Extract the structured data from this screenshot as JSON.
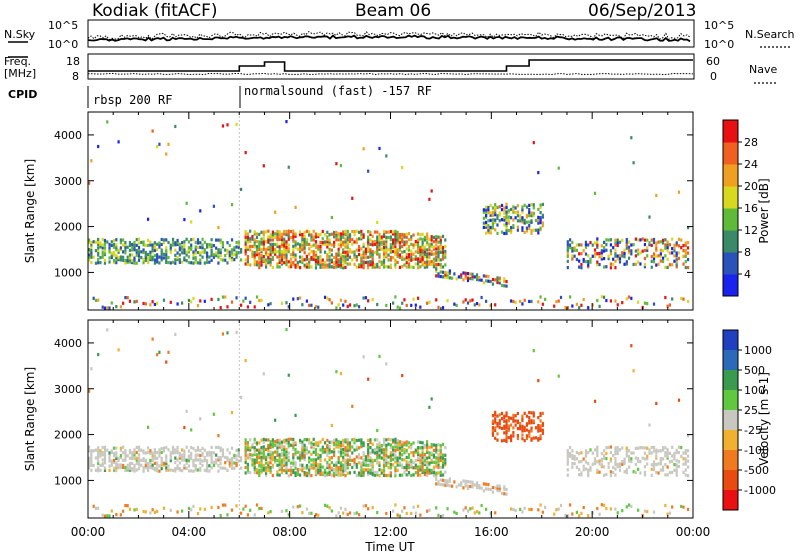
{
  "header": {
    "station": "Kodiak (fitACF)",
    "beam": "Beam 06",
    "date": "06/Sep/2013"
  },
  "status_rows": {
    "nsky_label": "N.Sky",
    "nsky_ticks": [
      "10^5",
      "10^0"
    ],
    "nsearch_label": "N.Search",
    "nsearch_ticks": [
      "10^5",
      "10^0"
    ],
    "freq_label_1": "Freq.",
    "freq_label_2": "[MHz]",
    "freq_ticks": [
      "18",
      "8"
    ],
    "nave_label": "Nave",
    "nave_ticks": [
      "60",
      "0"
    ],
    "cpid_label": "CPID",
    "cpid_segments": [
      {
        "label": "rbsp 200 RF",
        "start_hour": 0
      },
      {
        "label": "normalsound (fast) -157 RF",
        "start_hour": 6.0
      }
    ]
  },
  "chart_data": [
    {
      "type": "heatmap",
      "panel": "power",
      "xlabel": "",
      "ylabel": "Slant Range [km]",
      "xlim": [
        0,
        24
      ],
      "ylim": [
        180,
        4500
      ],
      "yticks": [
        "1000",
        "2000",
        "3000",
        "4000"
      ],
      "colorbar": {
        "label": "Power [dB]",
        "ticks": [
          "4",
          "8",
          "12",
          "16",
          "20",
          "24",
          "28"
        ],
        "colors": [
          "#1a22ee",
          "#2a52b8",
          "#3a8a6a",
          "#5fba3a",
          "#d8d820",
          "#f0a020",
          "#f06020",
          "#e81010"
        ]
      },
      "regions": [
        {
          "x": [
            0,
            6
          ],
          "y": [
            1200,
            1700
          ],
          "level": "green-yellow"
        },
        {
          "x": [
            6.2,
            14.2
          ],
          "y": [
            1100,
            1900
          ],
          "level": "green-orange"
        },
        {
          "x": [
            13.7,
            16.6
          ],
          "y": [
            800,
            1100
          ],
          "level": "red-blue"
        },
        {
          "x": [
            15.6,
            18
          ],
          "y": [
            1850,
            2500
          ],
          "level": "green-blue"
        },
        {
          "x": [
            18.9,
            23.8
          ],
          "y": [
            1100,
            1750
          ],
          "level": "blue-red"
        }
      ]
    },
    {
      "type": "heatmap",
      "panel": "velocity",
      "xlabel": "Time UT",
      "ylabel": "Slant Range [km]",
      "xlim": [
        0,
        24
      ],
      "ylim": [
        180,
        4500
      ],
      "xticks": [
        "00:00",
        "04:00",
        "08:00",
        "12:00",
        "16:00",
        "20:00",
        "00:00"
      ],
      "yticks": [
        "1000",
        "2000",
        "3000",
        "4000"
      ],
      "colorbar": {
        "label": "Velocity [m s-1]",
        "ticks": [
          "1000",
          "500",
          "100",
          "25",
          "-25",
          "-100",
          "-500",
          "-1000"
        ],
        "colors": [
          "#2040c0",
          "#2a6ab8",
          "#3a9a50",
          "#60c840",
          "#c8c8c0",
          "#f0b030",
          "#f07a20",
          "#e84a10",
          "#e81010"
        ]
      },
      "regions": [
        {
          "x": [
            0,
            6.2
          ],
          "y": [
            1200,
            1700
          ],
          "level": "ground-scatter"
        },
        {
          "x": [
            6.2,
            14.2
          ],
          "y": [
            1100,
            1900
          ],
          "level": "green-orange"
        },
        {
          "x": [
            13.7,
            16.6
          ],
          "y": [
            800,
            1100
          ],
          "level": "ground-scatter"
        },
        {
          "x": [
            16.0,
            18
          ],
          "y": [
            1900,
            2500
          ],
          "level": "-500"
        },
        {
          "x": [
            18.9,
            23.8
          ],
          "y": [
            1100,
            1750
          ],
          "level": "ground-scatter"
        }
      ]
    }
  ]
}
